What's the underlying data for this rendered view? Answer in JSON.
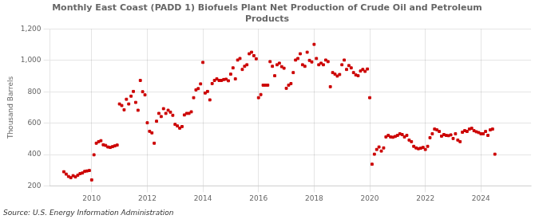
{
  "chart_data": {
    "type": "scatter",
    "title": "Monthly East Coast (PADD 1) Biofuels Plant Net Production of Crude Oil and Petroleum\nProducts",
    "ylabel": "Thousand Barrels",
    "annotations": [
      "Source: U.S. Energy Information Administration"
    ],
    "color": "#cc0000",
    "marker": "square",
    "grid": true,
    "xlim": [
      2008.5,
      2025.8
    ],
    "xticks": [
      2010,
      2012,
      2014,
      2016,
      2018,
      2020,
      2022,
      2024
    ],
    "ylim": [
      200,
      1200
    ],
    "yticks": [
      200,
      400,
      600,
      800,
      {
        "value": 1000,
        "label": "1,000"
      },
      {
        "value": 1200,
        "label": "1,200"
      }
    ],
    "x": [
      2009.0,
      2009.083,
      2009.167,
      2009.25,
      2009.333,
      2009.417,
      2009.5,
      2009.583,
      2009.667,
      2009.75,
      2009.833,
      2009.917,
      2010.0,
      2010.083,
      2010.167,
      2010.25,
      2010.333,
      2010.417,
      2010.5,
      2010.583,
      2010.667,
      2010.75,
      2010.833,
      2010.917,
      2011.0,
      2011.083,
      2011.167,
      2011.25,
      2011.333,
      2011.417,
      2011.5,
      2011.583,
      2011.667,
      2011.75,
      2011.833,
      2011.917,
      2012.0,
      2012.083,
      2012.167,
      2012.25,
      2012.333,
      2012.417,
      2012.5,
      2012.583,
      2012.667,
      2012.75,
      2012.833,
      2012.917,
      2013.0,
      2013.083,
      2013.167,
      2013.25,
      2013.333,
      2013.417,
      2013.5,
      2013.583,
      2013.667,
      2013.75,
      2013.833,
      2013.917,
      2014.0,
      2014.083,
      2014.167,
      2014.25,
      2014.333,
      2014.417,
      2014.5,
      2014.583,
      2014.667,
      2014.75,
      2014.833,
      2014.917,
      2015.0,
      2015.083,
      2015.167,
      2015.25,
      2015.333,
      2015.417,
      2015.5,
      2015.583,
      2015.667,
      2015.75,
      2015.833,
      2015.917,
      2016.0,
      2016.083,
      2016.167,
      2016.25,
      2016.333,
      2016.417,
      2016.5,
      2016.583,
      2016.667,
      2016.75,
      2016.833,
      2016.917,
      2017.0,
      2017.083,
      2017.167,
      2017.25,
      2017.333,
      2017.417,
      2017.5,
      2017.583,
      2017.667,
      2017.75,
      2017.833,
      2017.917,
      2018.0,
      2018.083,
      2018.167,
      2018.25,
      2018.333,
      2018.417,
      2018.5,
      2018.583,
      2018.667,
      2018.75,
      2018.833,
      2018.917,
      2019.0,
      2019.083,
      2019.167,
      2019.25,
      2019.333,
      2019.417,
      2019.5,
      2019.583,
      2019.667,
      2019.75,
      2019.833,
      2019.917,
      2020.0,
      2020.083,
      2020.167,
      2020.25,
      2020.333,
      2020.417,
      2020.5,
      2020.583,
      2020.667,
      2020.75,
      2020.833,
      2020.917,
      2021.0,
      2021.083,
      2021.167,
      2021.25,
      2021.333,
      2021.417,
      2021.5,
      2021.583,
      2021.667,
      2021.75,
      2021.833,
      2021.917,
      2022.0,
      2022.083,
      2022.167,
      2022.25,
      2022.333,
      2022.417,
      2022.5,
      2022.583,
      2022.667,
      2022.75,
      2022.833,
      2022.917,
      2023.0,
      2023.083,
      2023.167,
      2023.25,
      2023.333,
      2023.417,
      2023.5,
      2023.583,
      2023.667,
      2023.75,
      2023.833,
      2023.917,
      2024.0,
      2024.083,
      2024.167,
      2024.25,
      2024.333,
      2024.417,
      2024.5
    ],
    "values": [
      290,
      275,
      260,
      252,
      265,
      257,
      268,
      278,
      282,
      292,
      295,
      298,
      238,
      398,
      472,
      482,
      488,
      462,
      458,
      448,
      445,
      450,
      455,
      460,
      722,
      712,
      685,
      752,
      722,
      772,
      802,
      732,
      682,
      872,
      800,
      780,
      602,
      548,
      538,
      472,
      612,
      662,
      642,
      692,
      662,
      682,
      670,
      650,
      592,
      582,
      568,
      578,
      652,
      662,
      662,
      672,
      762,
      812,
      820,
      850,
      987,
      792,
      802,
      748,
      852,
      872,
      882,
      872,
      872,
      878,
      880,
      870,
      912,
      952,
      882,
      1002,
      1012,
      942,
      962,
      972,
      1042,
      1052,
      1030,
      1010,
      762,
      782,
      842,
      842,
      842,
      992,
      962,
      902,
      972,
      982,
      960,
      950,
      822,
      842,
      852,
      922,
      1002,
      1012,
      1042,
      972,
      962,
      1052,
      1000,
      990,
      1102,
      1012,
      972,
      982,
      972,
      1002,
      992,
      832,
      922,
      912,
      900,
      910,
      972,
      1002,
      942,
      967,
      952,
      922,
      907,
      902,
      932,
      942,
      930,
      945,
      762,
      338,
      402,
      432,
      448,
      422,
      442,
      512,
      522,
      512,
      510,
      515,
      522,
      532,
      527,
      512,
      522,
      492,
      482,
      452,
      442,
      437,
      440,
      445,
      432,
      452,
      507,
      532,
      562,
      557,
      547,
      517,
      527,
      522,
      520,
      525,
      502,
      532,
      492,
      482,
      542,
      552,
      547,
      562,
      567,
      552,
      545,
      540,
      532,
      532,
      547,
      522,
      557,
      562,
      402
    ]
  }
}
